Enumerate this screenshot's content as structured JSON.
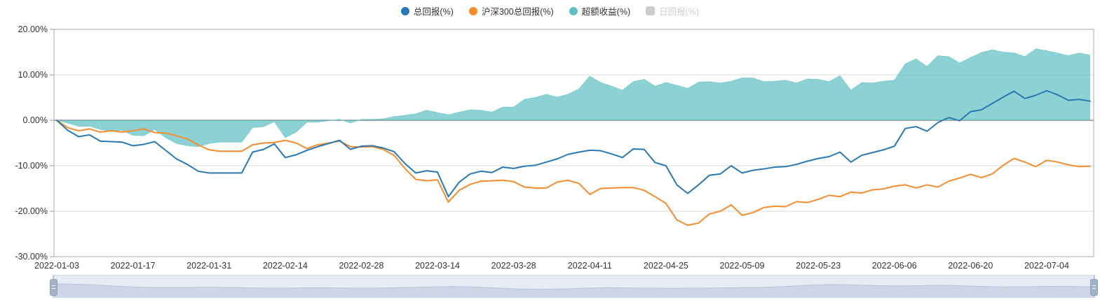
{
  "legend": {
    "items": [
      {
        "label": "总回报(%)",
        "color": "#2878b4",
        "shape": "circle",
        "enabled": true
      },
      {
        "label": "沪深300总回报(%)",
        "color": "#f78c2d",
        "shape": "circle",
        "enabled": true
      },
      {
        "label": "超额收益(%)",
        "color": "#5fc0c4",
        "shape": "circle",
        "enabled": true
      },
      {
        "label": "日回报(%)",
        "color": "#cccccc",
        "shape": "square",
        "enabled": false
      }
    ]
  },
  "chart_data": {
    "type": "line",
    "title": "",
    "xlabel": "",
    "ylabel": "",
    "ylim": [
      -30,
      20
    ],
    "yticks": [
      20,
      10,
      0,
      -10,
      -20,
      -30
    ],
    "ytick_labels": [
      "20.00%",
      "10.00%",
      "0.00%",
      "-10.00%",
      "-20.00%",
      "-30.00%"
    ],
    "grid": true,
    "legend_position": "top",
    "x_tick_labels": [
      "2022-01-03",
      "2022-01-17",
      "2022-01-31",
      "2022-02-14",
      "2022-02-28",
      "2022-03-14",
      "2022-03-28",
      "2022-04-11",
      "2022-04-25",
      "2022-05-09",
      "2022-05-23",
      "2022-06-06",
      "2022-06-20",
      "2022-07-04"
    ],
    "tick_every": 7,
    "n_points": 96,
    "series": [
      {
        "name": "总回报(%)",
        "type": "line",
        "color": "#2878b4",
        "values": [
          0,
          -2.2,
          -3.6,
          -3.2,
          -4.6,
          -4.7,
          -4.8,
          -5.6,
          -5.3,
          -4.7,
          -6.6,
          -8.5,
          -9.7,
          -11.2,
          -11.6,
          -11.6,
          -11.6,
          -11.6,
          -7.0,
          -6.4,
          -5.2,
          -8.2,
          -7.6,
          -6.6,
          -5.8,
          -5.1,
          -4.4,
          -6.4,
          -5.7,
          -5.6,
          -6.1,
          -6.9,
          -9.5,
          -11.6,
          -11.1,
          -11.4,
          -16.8,
          -13.6,
          -11.8,
          -11.2,
          -11.5,
          -10.3,
          -10.6,
          -10.1,
          -9.9,
          -9.2,
          -8.5,
          -7.5,
          -7.0,
          -6.6,
          -6.7,
          -7.4,
          -8.2,
          -6.3,
          -6.4,
          -9.3,
          -10.0,
          -14.2,
          -16.1,
          -14.2,
          -12.1,
          -11.8,
          -10.0,
          -11.6,
          -11.0,
          -10.7,
          -10.3,
          -10.2,
          -9.7,
          -9.0,
          -8.4,
          -8.0,
          -7.0,
          -9.2,
          -7.7,
          -7.1,
          -6.5,
          -5.7,
          -1.8,
          -1.4,
          -2.4,
          -0.5,
          0.6,
          -0.1,
          1.9,
          2.3,
          3.7,
          5.1,
          6.4,
          4.8,
          5.5,
          6.5,
          5.6,
          4.4,
          4.6,
          4.2
        ]
      },
      {
        "name": "沪深300总回报(%)",
        "type": "line",
        "color": "#f78c2d",
        "values": [
          0,
          -1.6,
          -2.3,
          -1.9,
          -2.6,
          -2.3,
          -2.6,
          -2.3,
          -1.9,
          -2.7,
          -2.8,
          -3.4,
          -4.1,
          -5.4,
          -6.5,
          -6.8,
          -6.8,
          -6.8,
          -5.4,
          -5.0,
          -4.9,
          -4.4,
          -5.0,
          -6.2,
          -5.4,
          -5.0,
          -4.6,
          -5.8,
          -5.9,
          -5.8,
          -6.4,
          -7.7,
          -10.6,
          -13.0,
          -13.3,
          -13.1,
          -18.0,
          -15.4,
          -14.1,
          -13.4,
          -13.3,
          -13.2,
          -13.5,
          -14.7,
          -14.9,
          -14.9,
          -13.6,
          -13.2,
          -13.9,
          -16.3,
          -15.0,
          -14.9,
          -14.8,
          -14.8,
          -15.4,
          -16.8,
          -18.3,
          -21.9,
          -23.1,
          -22.6,
          -20.6,
          -20.0,
          -18.6,
          -20.9,
          -20.3,
          -19.2,
          -18.9,
          -19.0,
          -17.9,
          -18.1,
          -17.4,
          -16.5,
          -16.8,
          -15.8,
          -16.0,
          -15.3,
          -15.1,
          -14.5,
          -14.2,
          -14.9,
          -14.2,
          -14.7,
          -13.4,
          -12.7,
          -11.9,
          -12.6,
          -11.8,
          -9.9,
          -8.4,
          -9.2,
          -10.2,
          -8.8,
          -9.2,
          -9.8,
          -10.2,
          -10.1
        ]
      },
      {
        "name": "超额收益(%)",
        "type": "area",
        "color": "#5fc0c4",
        "fill": "#5fc0c4",
        "fill_opacity": 0.72,
        "values": [
          0,
          -0.6,
          -1.3,
          -1.3,
          -2.0,
          -2.4,
          -2.2,
          -3.3,
          -3.4,
          -2.0,
          -3.8,
          -5.1,
          -5.6,
          -5.8,
          -5.1,
          -4.8,
          -4.8,
          -4.8,
          -1.6,
          -1.4,
          -0.3,
          -3.8,
          -2.6,
          -0.4,
          -0.4,
          -0.1,
          0.2,
          -0.6,
          0.2,
          0.2,
          0.3,
          0.8,
          1.1,
          1.4,
          2.2,
          1.7,
          1.2,
          1.8,
          2.3,
          2.2,
          1.8,
          2.9,
          2.9,
          4.6,
          5.0,
          5.7,
          5.1,
          5.7,
          6.9,
          9.7,
          8.3,
          7.5,
          6.6,
          8.5,
          9.0,
          7.5,
          8.3,
          7.7,
          7.0,
          8.4,
          8.5,
          8.2,
          8.6,
          9.3,
          9.3,
          8.5,
          8.6,
          8.8,
          8.2,
          9.1,
          9.0,
          8.5,
          9.8,
          6.6,
          8.3,
          8.2,
          8.6,
          8.8,
          12.4,
          13.5,
          11.8,
          14.2,
          14.0,
          12.6,
          13.8,
          14.9,
          15.5,
          15.0,
          14.8,
          14.0,
          15.7,
          15.3,
          14.8,
          14.2,
          14.8,
          14.3
        ]
      },
      {
        "name": "日回报(%)",
        "type": "bar",
        "color": "#cccccc",
        "hidden": true,
        "values": []
      }
    ]
  },
  "slider": {
    "track_color": "#e7ecf4",
    "shadow_fill": "#ccd6e6",
    "shadow_line": "#b7c3d8",
    "handle_color": "#a3b1c9",
    "profile": [
      0.38,
      0.4,
      0.44,
      0.5,
      0.54,
      0.56,
      0.55,
      0.54,
      0.55,
      0.57,
      0.58,
      0.57,
      0.56,
      0.57,
      0.58,
      0.57,
      0.55,
      0.53,
      0.51,
      0.53,
      0.57,
      0.62,
      0.64,
      0.62,
      0.58,
      0.56,
      0.57,
      0.58,
      0.59,
      0.58,
      0.57,
      0.56,
      0.55,
      0.51,
      0.45,
      0.42,
      0.43,
      0.46,
      0.48,
      0.47,
      0.45,
      0.47,
      0.51,
      0.53,
      0.52,
      0.5,
      0.51,
      0.52
    ]
  }
}
